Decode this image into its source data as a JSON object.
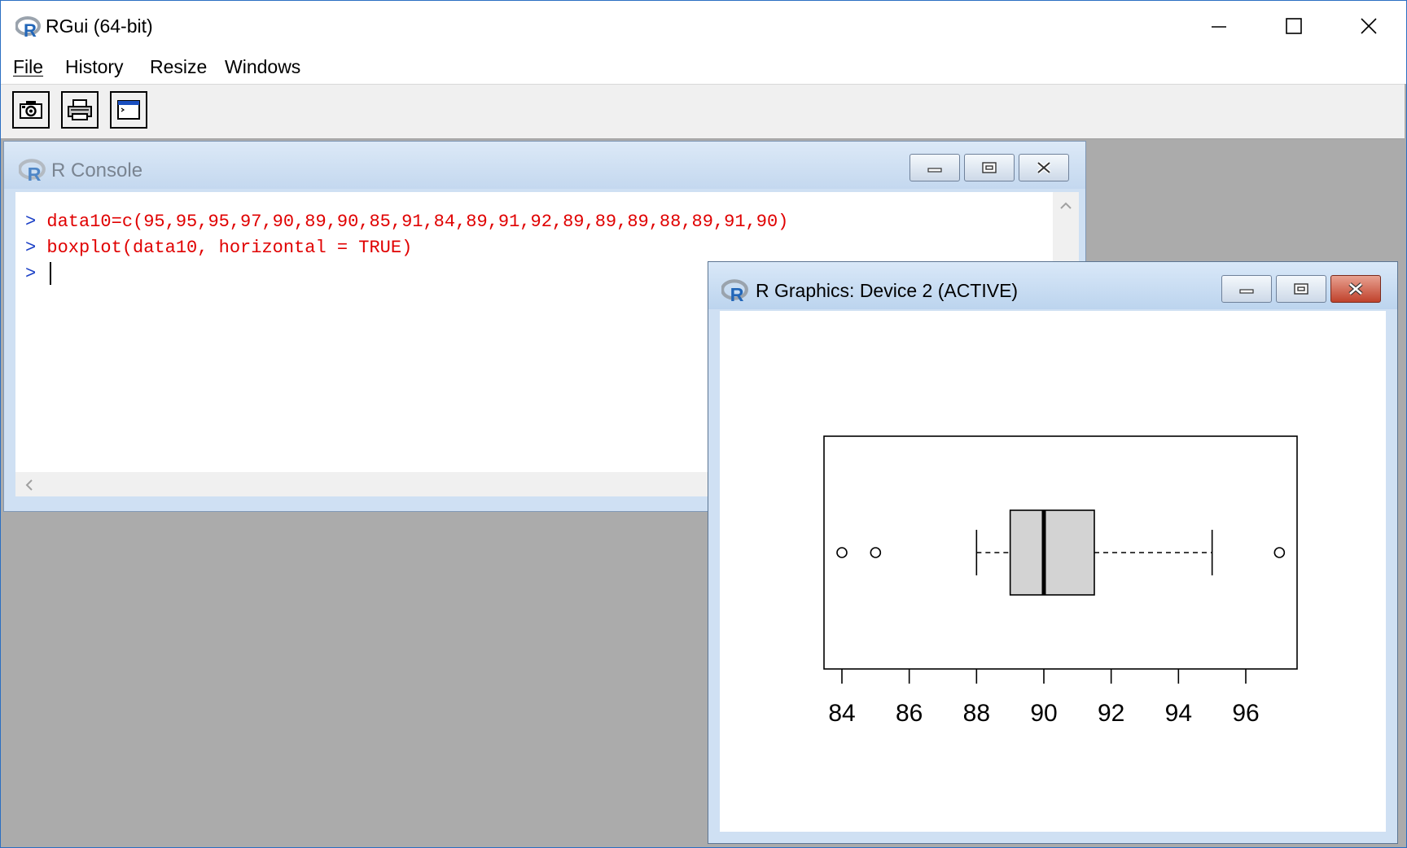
{
  "app": {
    "title": "RGui (64-bit)",
    "menu": [
      {
        "label": "File",
        "accel": "F"
      },
      {
        "label": "History",
        "accel": "H"
      },
      {
        "label": "Resize",
        "accel": "R"
      },
      {
        "label": "Windows",
        "accel": "W"
      }
    ],
    "toolbar": [
      "copy-metafile-icon",
      "print-icon",
      "console-icon"
    ]
  },
  "console": {
    "title": "R Console",
    "lines": [
      {
        "prompt": ">",
        "code": "data10=c(95,95,95,97,90,89,90,85,91,84,89,91,92,89,89,89,88,89,91,90)"
      },
      {
        "prompt": ">",
        "code": "boxplot(data10, horizontal = TRUE)"
      },
      {
        "prompt": ">",
        "code": ""
      }
    ],
    "text_color": "#e00000"
  },
  "graphics": {
    "title": "R Graphics: Device 2 (ACTIVE)"
  },
  "chart_data": {
    "type": "boxplot",
    "orientation": "horizontal",
    "xlim": [
      83.5,
      97.5
    ],
    "ticks": [
      84,
      86,
      88,
      90,
      92,
      94,
      96
    ],
    "tick_labels": [
      "84",
      "86",
      "88",
      "90",
      "92",
      "94",
      "96"
    ],
    "whisker_low": 88,
    "q1": 89,
    "median": 90,
    "q3": 91.5,
    "whisker_high": 95,
    "outliers": [
      84,
      85,
      97
    ],
    "box_fill": "#d3d3d3"
  }
}
